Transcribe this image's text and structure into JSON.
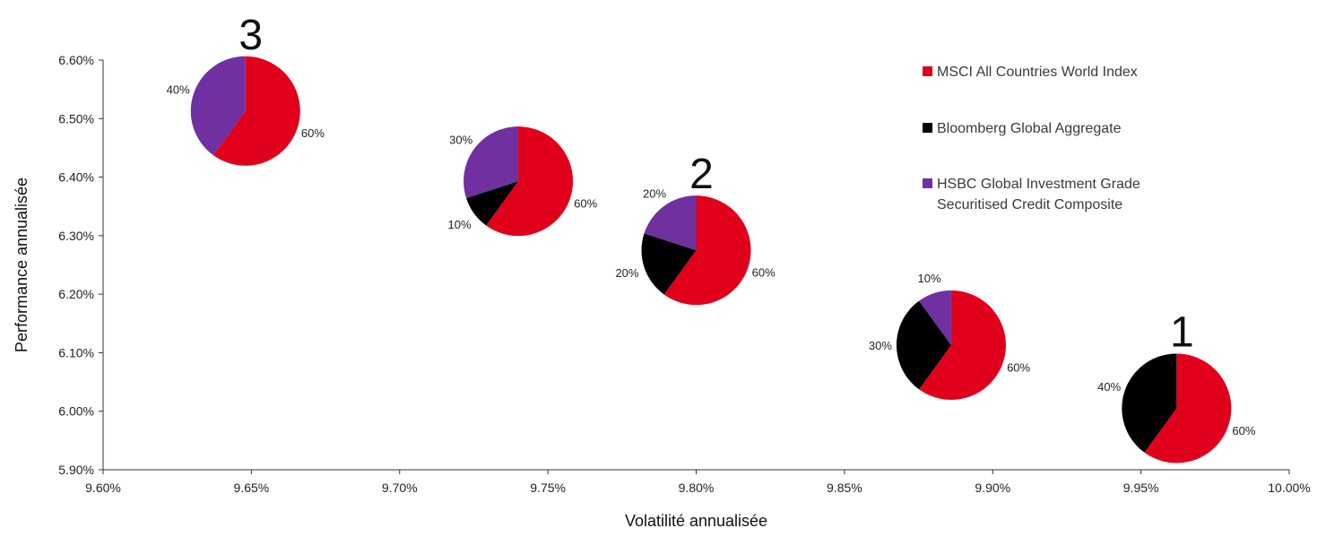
{
  "chart_data": {
    "type": "scatter",
    "marker": "pie",
    "title": "",
    "xlabel": "Volatilité annualisée",
    "ylabel": "Performance annualisée",
    "xlim": [
      9.6,
      10.0
    ],
    "ylim": [
      5.9,
      6.6
    ],
    "x_ticks": [
      "9.60%",
      "9.65%",
      "9.70%",
      "9.75%",
      "9.80%",
      "9.85%",
      "9.90%",
      "9.95%",
      "10.00%"
    ],
    "y_ticks": [
      "6.60%",
      "6.50%",
      "6.40%",
      "6.30%",
      "6.20%",
      "6.10%",
      "6.00%",
      "5.90%"
    ],
    "grid": false,
    "legend_position": "top-right",
    "legend": [
      {
        "label": "MSCI All Countries World Index",
        "color": "#e0001b"
      },
      {
        "label": "Bloomberg Global Aggregate",
        "color": "#000000"
      },
      {
        "label": "HSBC Global Investment Grade Securitised Credit Composite",
        "color": "#7030a0"
      }
    ],
    "points": [
      {
        "tag": "3",
        "x": 9.648,
        "y": 6.513,
        "slices": [
          60,
          0,
          40
        ],
        "labels": {
          "msci": "60%",
          "purple": "40%"
        }
      },
      {
        "tag": "",
        "x": 9.74,
        "y": 6.393,
        "slices": [
          60,
          10,
          30
        ],
        "labels": {
          "msci": "60%",
          "black": "10%",
          "purple": "30%"
        }
      },
      {
        "tag": "2",
        "x": 9.8,
        "y": 6.275,
        "slices": [
          60,
          20,
          20
        ],
        "labels": {
          "msci": "60%",
          "black": "20%",
          "purple": "20%"
        }
      },
      {
        "tag": "",
        "x": 9.886,
        "y": 6.113,
        "slices": [
          60,
          30,
          10
        ],
        "labels": {
          "msci": "60%",
          "black": "30%",
          "purple": "10%"
        }
      },
      {
        "tag": "1",
        "x": 9.962,
        "y": 6.005,
        "slices": [
          60,
          40,
          0
        ],
        "labels": {
          "msci": "60%",
          "black": "40%"
        }
      }
    ]
  }
}
